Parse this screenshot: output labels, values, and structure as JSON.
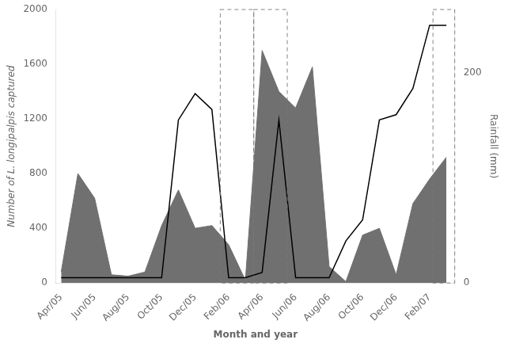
{
  "chart_data": {
    "type": "line",
    "xlabel": "Month and year",
    "ylabel": "Number of L. longipalpis captured",
    "y2label": "Rainfall (mm)",
    "categories": [
      "Apr/05",
      null,
      "Jun/05",
      null,
      "Aug/05",
      null,
      "Oct/05",
      null,
      "Dec/05",
      null,
      "Feb/06",
      null,
      "Apr/06",
      null,
      "Jun/06",
      null,
      "Aug/06",
      null,
      "Oct/06",
      null,
      "Dec/06",
      null,
      "Feb/07",
      null
    ],
    "xlim": [
      -0.3,
      23.5
    ],
    "series": [
      {
        "type": "area",
        "color": "#707070",
        "values": [
          80,
          800,
          620,
          60,
          50,
          80,
          420,
          680,
          400,
          420,
          280,
          20,
          1700,
          1400,
          1280,
          1580,
          120,
          10,
          350,
          400,
          60,
          580,
          760,
          920
        ]
      },
      {
        "type": "line",
        "color": "#000000",
        "axis": "y2",
        "values": [
          5,
          5,
          5,
          5,
          5,
          5,
          5,
          155,
          180,
          165,
          5,
          5,
          10,
          155,
          5,
          5,
          5,
          40,
          60,
          155,
          160,
          185,
          245,
          245
        ]
      }
    ],
    "ylim": [
      0,
      2000
    ],
    "yticks": [
      0,
      400,
      800,
      1200,
      1600,
      2000
    ],
    "y2lim": [
      0,
      260
    ],
    "y2ticks": [
      0,
      200
    ],
    "grid": false,
    "dashed_spans": [
      {
        "x0": 9.5,
        "x1": 11.5
      },
      {
        "x0": 11.5,
        "x1": 13.5
      },
      {
        "x0": 22.2,
        "x1": 23.5
      }
    ]
  }
}
